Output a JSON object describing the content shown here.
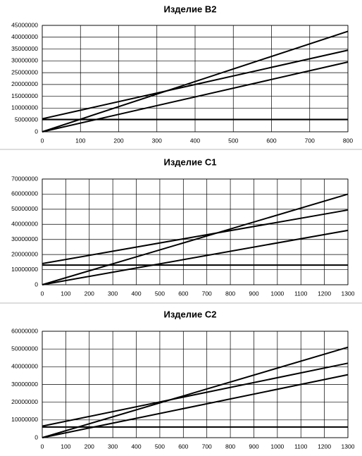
{
  "chart_data": [
    {
      "type": "line",
      "title": "Изделие B2",
      "grid": true,
      "x": [
        0,
        800
      ],
      "xlim": [
        0,
        800
      ],
      "xticks": [
        0,
        100,
        200,
        300,
        400,
        500,
        600,
        700,
        800
      ],
      "ylim": [
        0,
        45000000
      ],
      "yticks": [
        0,
        5000000,
        10000000,
        15000000,
        20000000,
        25000000,
        30000000,
        35000000,
        40000000,
        45000000
      ],
      "series": [
        {
          "color": "#000000",
          "values": [
            0,
            42500000
          ]
        },
        {
          "color": "#000000",
          "values": [
            5500000,
            34500000
          ]
        },
        {
          "color": "#000000",
          "values": [
            0,
            29500000
          ]
        },
        {
          "color": "#000000",
          "values": [
            5200000,
            5200000
          ]
        }
      ]
    },
    {
      "type": "line",
      "title": "Изделие C1",
      "grid": true,
      "x": [
        0,
        1300
      ],
      "xlim": [
        0,
        1300
      ],
      "xticks": [
        0,
        100,
        200,
        300,
        400,
        500,
        600,
        700,
        800,
        900,
        1000,
        1100,
        1200,
        1300
      ],
      "ylim": [
        0,
        70000000
      ],
      "yticks": [
        0,
        10000000,
        20000000,
        30000000,
        40000000,
        50000000,
        60000000,
        70000000
      ],
      "series": [
        {
          "color": "#000000",
          "values": [
            0,
            60000000
          ]
        },
        {
          "color": "#000000",
          "values": [
            14000000,
            49500000
          ]
        },
        {
          "color": "#000000",
          "values": [
            0,
            36000000
          ]
        },
        {
          "color": "#000000",
          "values": [
            13000000,
            13000000
          ]
        }
      ]
    },
    {
      "type": "line",
      "title": "Изделие C2",
      "grid": true,
      "x": [
        0,
        1300
      ],
      "xlim": [
        0,
        1300
      ],
      "xticks": [
        0,
        100,
        200,
        300,
        400,
        500,
        600,
        700,
        800,
        900,
        1000,
        1100,
        1200,
        1300
      ],
      "ylim": [
        0,
        60000000
      ],
      "yticks": [
        0,
        10000000,
        20000000,
        30000000,
        40000000,
        50000000,
        60000000
      ],
      "series": [
        {
          "color": "#000000",
          "values": [
            0,
            51000000
          ]
        },
        {
          "color": "#000000",
          "values": [
            6500000,
            42000000
          ]
        },
        {
          "color": "#000000",
          "values": [
            0,
            35500000
          ]
        },
        {
          "color": "#000000",
          "values": [
            6000000,
            6000000
          ]
        }
      ]
    }
  ]
}
